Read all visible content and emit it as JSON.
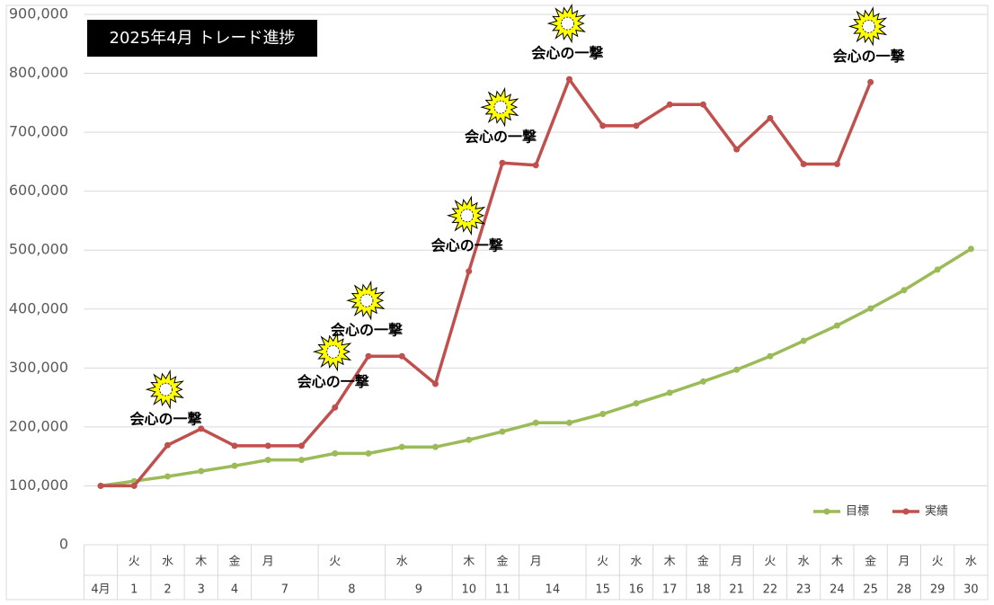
{
  "chart_data": {
    "type": "line",
    "title": "2025年4月 トレード進捗",
    "categories": [
      "4月",
      "1",
      "2",
      "3",
      "4",
      "7",
      null,
      "8",
      null,
      "9",
      null,
      "10",
      "11",
      "14",
      null,
      "15",
      "16",
      "17",
      "18",
      "21",
      "22",
      "23",
      "24",
      "25",
      "28",
      "29",
      "30"
    ],
    "weekdays": [
      null,
      "火",
      "水",
      "木",
      "金",
      "月",
      null,
      "火",
      null,
      "水",
      null,
      "木",
      "金",
      "月",
      null,
      "火",
      "水",
      "木",
      "金",
      "月",
      "火",
      "水",
      "木",
      "金",
      "月",
      "火",
      "水"
    ],
    "series": [
      {
        "name": "目標",
        "color": "#9bbb59",
        "values": [
          100000,
          108000,
          116000,
          125000,
          134000,
          144000,
          144000,
          155000,
          155000,
          166000,
          166000,
          178000,
          192000,
          207000,
          207000,
          222000,
          240000,
          258000,
          277000,
          297000,
          320000,
          346000,
          372000,
          401000,
          432000,
          467000,
          502000
        ]
      },
      {
        "name": "実績",
        "color": "#c0504d",
        "values": [
          100000,
          100000,
          169000,
          197000,
          168000,
          168000,
          168000,
          233000,
          320000,
          320000,
          273000,
          464000,
          648000,
          644000,
          790000,
          711000,
          711000,
          747000,
          747000,
          671000,
          724000,
          646000,
          646000,
          785000,
          null,
          null,
          null
        ]
      }
    ],
    "annotations": [
      {
        "text": "会心の一撃",
        "point": 2
      },
      {
        "text": "会心の一撃",
        "point": 7
      },
      {
        "text": "会心の一撃",
        "point": 8
      },
      {
        "text": "会心の一撃",
        "point": 11
      },
      {
        "text": "会心の一撃",
        "point": 12
      },
      {
        "text": "会心の一撃",
        "point": 14
      },
      {
        "text": "会心の一撃",
        "point": 23
      }
    ],
    "ylim": [
      0,
      900000
    ],
    "yticks": [
      0,
      {
        "value": 100000,
        "label": "100,000"
      },
      {
        "value": 200000,
        "label": "200,000"
      },
      {
        "value": 300000,
        "label": "300,000"
      },
      {
        "value": 400000,
        "label": "400,000"
      },
      {
        "value": 500000,
        "label": "500,000"
      },
      {
        "value": 600000,
        "label": "600,000"
      },
      {
        "value": 700000,
        "label": "700,000"
      },
      {
        "value": 800000,
        "label": "800,000"
      },
      {
        "value": 900000,
        "label": "900,000"
      }
    ],
    "grid": true,
    "legend": "bottom-right"
  }
}
